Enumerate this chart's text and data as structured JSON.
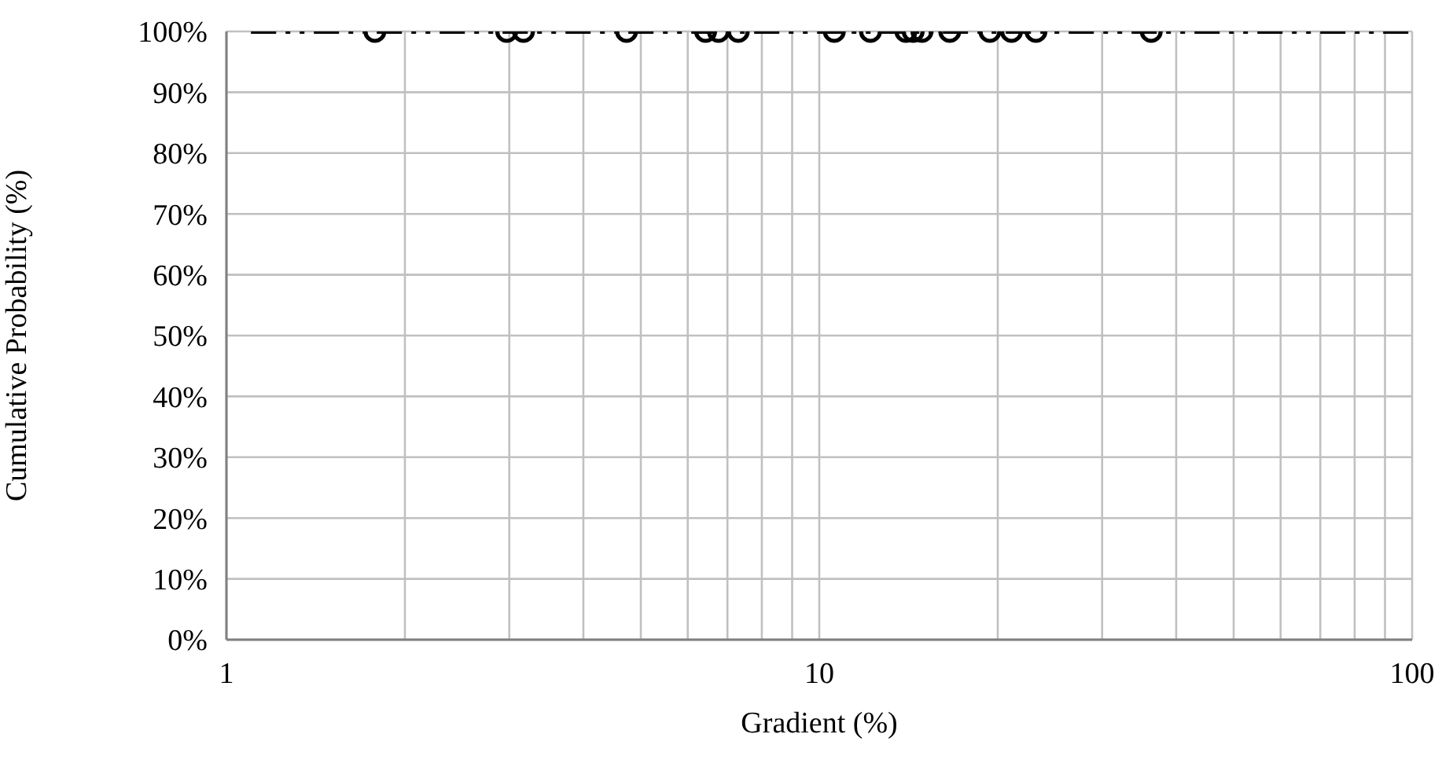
{
  "chart_data": {
    "type": "scatter",
    "xlabel": "Gradient (%)",
    "ylabel": "Cumulative Probability (%)",
    "log": "x",
    "grid": true,
    "marker": "circle",
    "xlim": [
      1,
      100
    ],
    "xticks": [
      1,
      {
        "value": 2,
        "label": null
      },
      {
        "value": 3,
        "label": null
      },
      {
        "value": 4,
        "label": null
      },
      {
        "value": 5,
        "label": null
      },
      {
        "value": 6,
        "label": null
      },
      {
        "value": 7,
        "label": null
      },
      {
        "value": 8,
        "label": null
      },
      {
        "value": 9,
        "label": null
      },
      10,
      {
        "value": 20,
        "label": null
      },
      {
        "value": 30,
        "label": null
      },
      {
        "value": 40,
        "label": null
      },
      {
        "value": 50,
        "label": null
      },
      {
        "value": 60,
        "label": null
      },
      {
        "value": 70,
        "label": null
      },
      {
        "value": 80,
        "label": null
      },
      {
        "value": 90,
        "label": null
      },
      100
    ],
    "ylim": [
      0,
      100
    ],
    "yticks": [
      {
        "value": 0,
        "label": "0%"
      },
      {
        "value": 10,
        "label": "10%"
      },
      {
        "value": 20,
        "label": "20%"
      },
      {
        "value": 30,
        "label": "30%"
      },
      {
        "value": 40,
        "label": "40%"
      },
      {
        "value": 50,
        "label": "50%"
      },
      {
        "value": 60,
        "label": "60%"
      },
      {
        "value": 70,
        "label": "70%"
      },
      {
        "value": 80,
        "label": "80%"
      },
      {
        "value": 90,
        "label": "90%"
      },
      {
        "value": 100,
        "label": "100%"
      }
    ],
    "series": [
      {
        "type": "line",
        "color": "#000000",
        "line_style": "dashed",
        "marker": "none",
        "x": [
          1.1,
          100
        ],
        "values": [
          100,
          100
        ]
      },
      {
        "type": "scatter",
        "color": "#000000",
        "x": [
          1.78,
          2.97,
          3.17,
          4.73,
          6.43,
          6.76,
          7.3,
          10.6,
          12.2,
          14.0,
          14.4,
          14.9,
          16.6,
          19.4,
          21.1,
          23.2,
          36.3
        ],
        "values": [
          100,
          100,
          100,
          100,
          100,
          100,
          100,
          100,
          100,
          100,
          100,
          100,
          100,
          100,
          100,
          100,
          100
        ]
      }
    ]
  }
}
